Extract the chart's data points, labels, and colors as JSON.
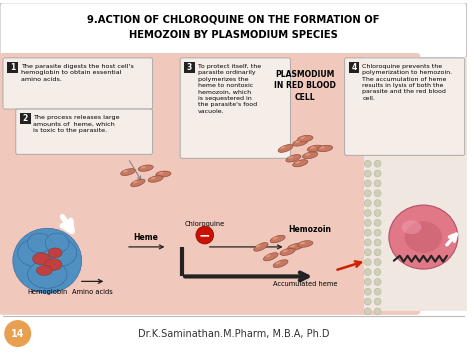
{
  "title_line1": "9.ACTION OF CHLOROQUINE ON THE FORMATION OF",
  "title_line2": "HEMOZOIN BY PLASMODIUM SPECIES",
  "bg_color": "#f0c8bc",
  "outer_bg": "#ffffff",
  "footer_text": "Dr.K.Saminathan.M.Pharm, M.B.A, Ph.D",
  "page_num": "14",
  "box1_text": "The parasite digests the host cell's\nhemoglobin to obtain essential\namino acids.",
  "box2_text": "The process releases large\namounts of  heme, which\nis toxic to the parasite.",
  "box3_text": "To protect itself, the\nparasite ordinarily\npolymerizes the\nheme to nontoxic\nhemozoin, which\nis sequestered in\nthe parasite's food\nvacuole.",
  "box4_text": "Chloroquine prevents the\npolymerization to hemozoin.\nThe accumulation of heme\nresults in lysis of both the\nparasite and the red blood\ncell.",
  "label_plasmodium": "PLASMODIUM\nIN RED BLOOD\nCELL",
  "label_heme": "Heme",
  "label_hemozoin": "Hemozoin",
  "label_hemoglobin": "Hemoglobin",
  "label_amino": "Amino acids",
  "label_accumulated": "Accumulated heme",
  "label_chloroquine": "Chloroquine",
  "heme_crystal_color": "#c87860",
  "heme_crystal_edge": "#905040",
  "box_bg": "#f5ede8",
  "number_bg": "#222222",
  "arrow_dark": "#222222",
  "red_circle": "#cc1100",
  "rbc_color": "#e88090",
  "rbc_inner": "#c06070",
  "hemo_blue": "#5090c0",
  "hemo_inner": "#c04040",
  "stripe_color": "#d8d8c8",
  "red_arrow_color": "#cc2200"
}
